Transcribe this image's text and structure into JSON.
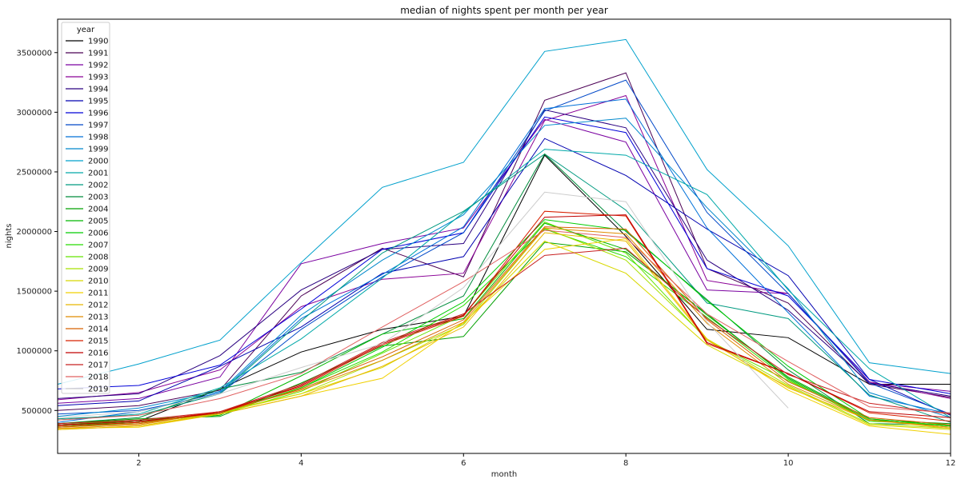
{
  "chart_data": {
    "type": "line",
    "title": "median of nights spent per month per year",
    "xlabel": "month",
    "ylabel": "nights",
    "xlim": [
      1,
      12
    ],
    "ylim": [
      140000,
      3780000
    ],
    "xticks": [
      2,
      4,
      6,
      8,
      10,
      12
    ],
    "yticks": [
      500000,
      1000000,
      1500000,
      2000000,
      2500000,
      3000000,
      3500000
    ],
    "grid": false,
    "legend_title": "year",
    "legend_position": "upper-left",
    "x": [
      1,
      2,
      3,
      4,
      5,
      6,
      7,
      8,
      9,
      10,
      11,
      12
    ],
    "series": [
      {
        "name": "1990",
        "color": "#000000",
        "values": [
          380000,
          410000,
          680000,
          990000,
          1180000,
          1290000,
          2640000,
          1960000,
          1180000,
          1110000,
          720000,
          720000
        ]
      },
      {
        "name": "1991",
        "color": "#4b0055",
        "values": [
          500000,
          540000,
          670000,
          1460000,
          1860000,
          1620000,
          3100000,
          3330000,
          1690000,
          1400000,
          720000,
          610000
        ]
      },
      {
        "name": "1992",
        "color": "#7a00a0",
        "values": [
          560000,
          600000,
          780000,
          1730000,
          1900000,
          2030000,
          2940000,
          2750000,
          1510000,
          1480000,
          730000,
          660000
        ]
      },
      {
        "name": "1993",
        "color": "#8a0096",
        "values": [
          590000,
          650000,
          840000,
          1370000,
          1600000,
          1650000,
          2930000,
          3140000,
          1590000,
          1480000,
          740000,
          600000
        ]
      },
      {
        "name": "1994",
        "color": "#2a0080",
        "values": [
          600000,
          640000,
          960000,
          1510000,
          1850000,
          1900000,
          3020000,
          2870000,
          1760000,
          1340000,
          730000,
          620000
        ]
      },
      {
        "name": "1995",
        "color": "#0000b0",
        "values": [
          540000,
          580000,
          870000,
          1200000,
          1650000,
          1790000,
          2780000,
          2470000,
          2020000,
          1630000,
          760000,
          460000
        ]
      },
      {
        "name": "1996",
        "color": "#0000d8",
        "values": [
          680000,
          710000,
          880000,
          1350000,
          1850000,
          1990000,
          2960000,
          2830000,
          1690000,
          1460000,
          760000,
          640000
        ]
      },
      {
        "name": "1997",
        "color": "#0048c8",
        "values": [
          470000,
          500000,
          640000,
          1180000,
          1620000,
          1990000,
          3010000,
          3270000,
          2160000,
          1480000,
          730000,
          470000
        ]
      },
      {
        "name": "1998",
        "color": "#0070d8",
        "values": [
          400000,
          490000,
          650000,
          1270000,
          1640000,
          2040000,
          3030000,
          3110000,
          2030000,
          1320000,
          620000,
          470000
        ]
      },
      {
        "name": "1999",
        "color": "#0088cc",
        "values": [
          450000,
          520000,
          660000,
          1300000,
          1760000,
          2140000,
          2890000,
          2950000,
          2200000,
          1520000,
          650000,
          440000
        ]
      },
      {
        "name": "2000",
        "color": "#00a0cc",
        "values": [
          720000,
          890000,
          1090000,
          1740000,
          2370000,
          2580000,
          3510000,
          3610000,
          2520000,
          1880000,
          900000,
          810000
        ]
      },
      {
        "name": "2001",
        "color": "#00a8a8",
        "values": [
          420000,
          470000,
          690000,
          1100000,
          1610000,
          2160000,
          2690000,
          2640000,
          2310000,
          1510000,
          850000,
          440000
        ]
      },
      {
        "name": "2002",
        "color": "#009a80",
        "values": [
          430000,
          460000,
          640000,
          1250000,
          1820000,
          2170000,
          2650000,
          2180000,
          1400000,
          1270000,
          630000,
          400000
        ]
      },
      {
        "name": "2003",
        "color": "#008c3c",
        "values": [
          390000,
          440000,
          680000,
          820000,
          1140000,
          1460000,
          2650000,
          2000000,
          1430000,
          840000,
          390000,
          380000
        ]
      },
      {
        "name": "2004",
        "color": "#00a000",
        "values": [
          390000,
          430000,
          450000,
          730000,
          1040000,
          1120000,
          1910000,
          1830000,
          1310000,
          770000,
          420000,
          390000
        ]
      },
      {
        "name": "2005",
        "color": "#00b800",
        "values": [
          370000,
          410000,
          460000,
          790000,
          1140000,
          1270000,
          2070000,
          1850000,
          1300000,
          780000,
          430000,
          370000
        ]
      },
      {
        "name": "2006",
        "color": "#00cc00",
        "values": [
          360000,
          400000,
          480000,
          690000,
          1030000,
          1410000,
          2100000,
          2010000,
          1420000,
          870000,
          430000,
          370000
        ]
      },
      {
        "name": "2007",
        "color": "#28dc00",
        "values": [
          380000,
          420000,
          470000,
          690000,
          990000,
          1380000,
          2020000,
          1790000,
          1280000,
          760000,
          410000,
          380000
        ]
      },
      {
        "name": "2008",
        "color": "#64e400",
        "values": [
          370000,
          400000,
          470000,
          660000,
          980000,
          1300000,
          2080000,
          1820000,
          1090000,
          750000,
          420000,
          360000
        ]
      },
      {
        "name": "2009",
        "color": "#a8e000",
        "values": [
          360000,
          390000,
          490000,
          640000,
          920000,
          1220000,
          2030000,
          1760000,
          1100000,
          710000,
          390000,
          350000
        ]
      },
      {
        "name": "2010",
        "color": "#d8d800",
        "values": [
          340000,
          370000,
          480000,
          640000,
          860000,
          1230000,
          1920000,
          1650000,
          1050000,
          700000,
          380000,
          340000
        ]
      },
      {
        "name": "2011",
        "color": "#f0d000",
        "values": [
          350000,
          360000,
          470000,
          620000,
          770000,
          1240000,
          1850000,
          1940000,
          1100000,
          670000,
          370000,
          300000
        ]
      },
      {
        "name": "2012",
        "color": "#e8b800",
        "values": [
          340000,
          370000,
          470000,
          620000,
          870000,
          1200000,
          1990000,
          1920000,
          1090000,
          690000,
          420000,
          350000
        ]
      },
      {
        "name": "2013",
        "color": "#e08c00",
        "values": [
          350000,
          380000,
          490000,
          670000,
          920000,
          1240000,
          2030000,
          1980000,
          1230000,
          720000,
          420000,
          360000
        ]
      },
      {
        "name": "2014",
        "color": "#d86000",
        "values": [
          360000,
          390000,
          480000,
          680000,
          950000,
          1260000,
          2040000,
          2020000,
          1260000,
          740000,
          440000,
          380000
        ]
      },
      {
        "name": "2015",
        "color": "#d82000",
        "values": [
          370000,
          400000,
          490000,
          700000,
          1050000,
          1290000,
          2170000,
          2130000,
          1060000,
          810000,
          480000,
          410000
        ]
      },
      {
        "name": "2016",
        "color": "#c00000",
        "values": [
          380000,
          410000,
          480000,
          710000,
          1060000,
          1300000,
          2120000,
          2140000,
          1070000,
          810000,
          490000,
          440000
        ]
      },
      {
        "name": "2017",
        "color": "#c82020",
        "values": [
          390000,
          420000,
          490000,
          720000,
          1070000,
          1310000,
          1800000,
          1860000,
          1270000,
          800000,
          560000,
          470000
        ]
      },
      {
        "name": "2018",
        "color": "#e06060",
        "values": [
          420000,
          460000,
          600000,
          810000,
          1200000,
          1580000,
          2010000,
          1950000,
          1310000,
          910000,
          530000,
          480000
        ]
      },
      {
        "name": "2019",
        "color": "#cccccc",
        "values": [
          440000,
          490000,
          640000,
          860000,
          1060000,
          1530000,
          2330000,
          2250000,
          1240000,
          520000,
          null,
          null
        ]
      }
    ]
  }
}
